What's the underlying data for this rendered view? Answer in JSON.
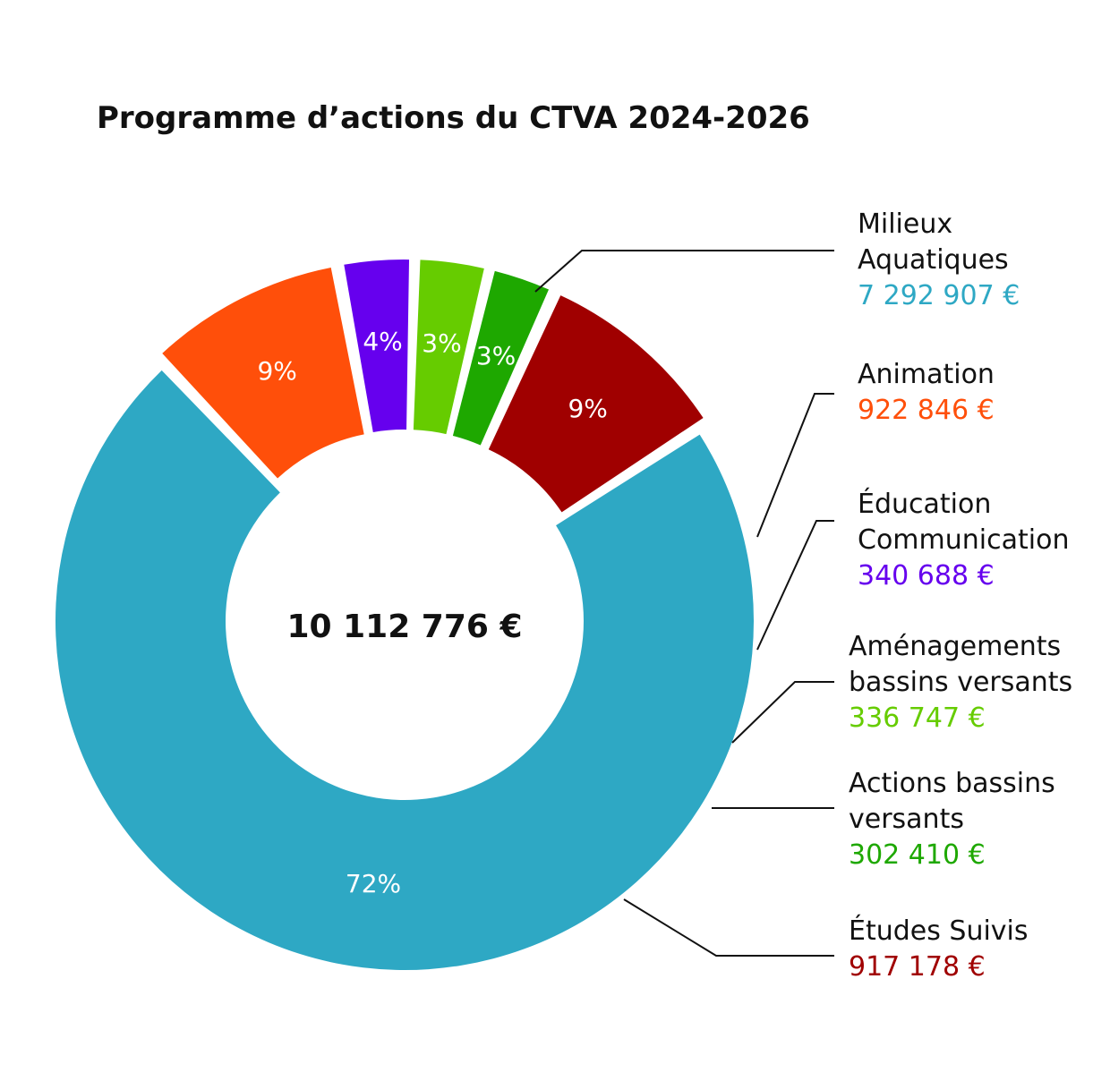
{
  "chart_data": {
    "type": "pie",
    "title": "Programme d’actions du CTVA 2024-2026",
    "center_label": "10 112 776 €",
    "slices": [
      {
        "name_lines": [
          "Milieux",
          "Aquatiques"
        ],
        "value": 7292907,
        "value_label": "7 292 907 €",
        "percent_label": "72%",
        "color": "#2ea8c4"
      },
      {
        "name_lines": [
          "Animation"
        ],
        "value": 922846,
        "value_label": "922 846 €",
        "percent_label": "9%",
        "color": "#ff4f0a"
      },
      {
        "name_lines": [
          "Éducation",
          "Communication"
        ],
        "value": 340688,
        "value_label": "340 688 €",
        "percent_label": "4%",
        "color": "#6600ee"
      },
      {
        "name_lines": [
          "Aménagements",
          "bassins versants"
        ],
        "value": 336747,
        "value_label": "336 747 €",
        "percent_label": "3%",
        "color": "#66cc00"
      },
      {
        "name_lines": [
          "Actions bassins",
          "versants"
        ],
        "value": 302410,
        "value_label": "302 410 €",
        "percent_label": "3%",
        "color": "#1ea800"
      },
      {
        "name_lines": [
          "Études Suivis"
        ],
        "value": 917178,
        "value_label": "917 178 €",
        "percent_label": "9%",
        "color": "#a00000"
      }
    ]
  }
}
